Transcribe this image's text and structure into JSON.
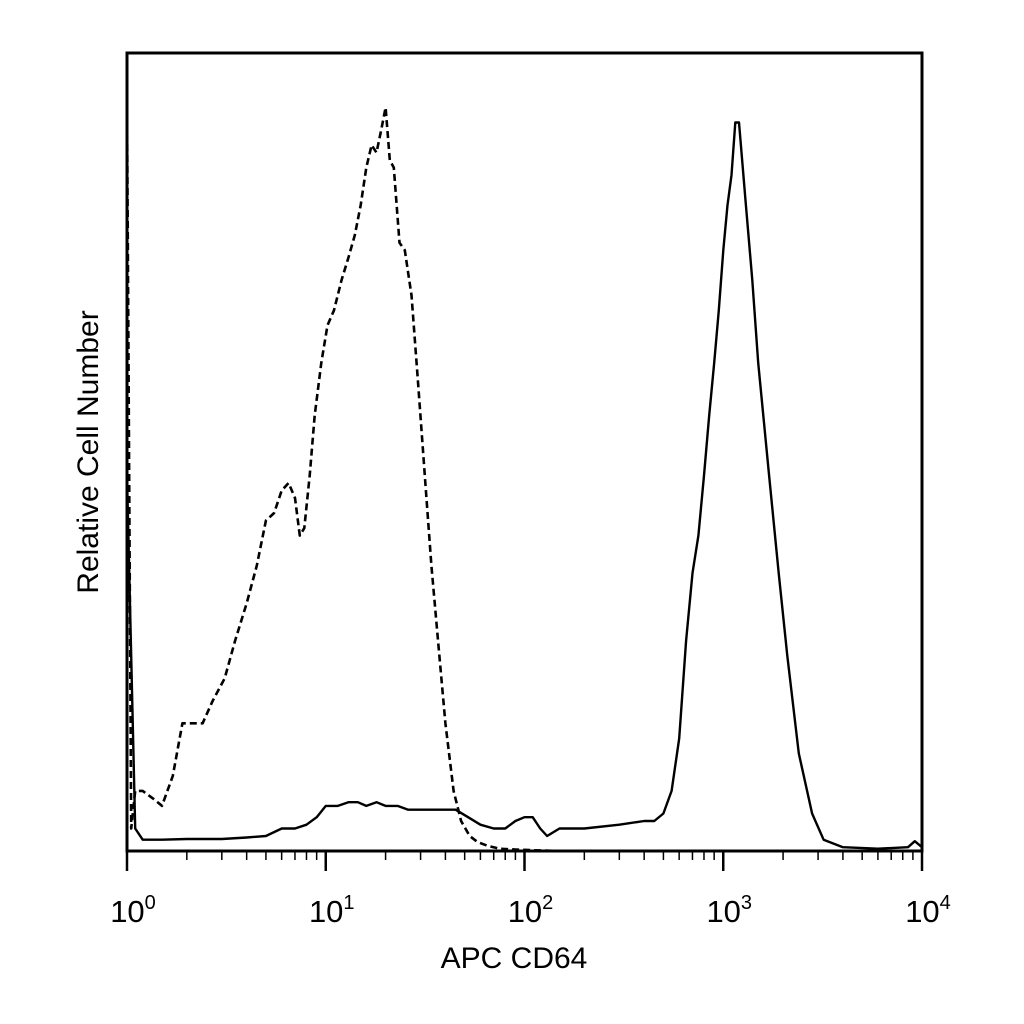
{
  "chart_data": {
    "type": "line",
    "title": "",
    "xlabel": "APC CD64",
    "ylabel": "Relative Cell Number",
    "xscale": "log",
    "xlim": [
      1,
      10000
    ],
    "ylim": [
      0,
      100
    ],
    "grid": false,
    "legend": "none",
    "x_ticks": [
      {
        "value": 1,
        "base": "10",
        "exp": "0"
      },
      {
        "value": 10,
        "base": "10",
        "exp": "1"
      },
      {
        "value": 100,
        "base": "10",
        "exp": "2"
      },
      {
        "value": 1000,
        "base": "10",
        "exp": "3"
      },
      {
        "value": 10000,
        "base": "10",
        "exp": "4"
      }
    ],
    "series": [
      {
        "style": "dashed",
        "color": "#000000",
        "x": [
          1.0,
          1.05,
          1.1,
          1.2,
          1.35,
          1.5,
          1.7,
          1.9,
          2.1,
          2.4,
          2.7,
          3.1,
          3.5,
          4.0,
          4.5,
          5.0,
          5.5,
          6.0,
          6.5,
          7.0,
          7.4,
          7.8,
          8.3,
          8.8,
          9.5,
          10.2,
          11.0,
          12.0,
          13.0,
          14.0,
          15.0,
          16.0,
          17.0,
          18.0,
          19.0,
          20.0,
          21.0,
          22.0,
          23.5,
          25.0,
          27.0,
          29.0,
          31.5,
          34.0,
          37.0,
          40.0,
          44.0,
          48.0,
          53.0,
          58.0,
          65.0,
          75.0,
          90.0,
          110.0,
          150.0,
          200.0,
          400.0,
          1000.0,
          10000.0
        ],
        "y": [
          100,
          3,
          8,
          8,
          7,
          6,
          10,
          17,
          17,
          17,
          20,
          23,
          28,
          33,
          38,
          44,
          45,
          48,
          49,
          47,
          42,
          43,
          50,
          58,
          65,
          70,
          72,
          76,
          79,
          82,
          86,
          91,
          94,
          93,
          96,
          99,
          92,
          91,
          81,
          80,
          74,
          63,
          50,
          38,
          27,
          17,
          8,
          4,
          2,
          1.2,
          0.7,
          0.3,
          0.2,
          0.1,
          0,
          0,
          0,
          0,
          0
        ]
      },
      {
        "style": "solid",
        "color": "#000000",
        "x": [
          1.0,
          1.1,
          1.2,
          1.5,
          2.0,
          3.0,
          4.0,
          5.0,
          6.0,
          7.0,
          8.0,
          9.0,
          10.0,
          11.5,
          13.0,
          14.5,
          16.0,
          18.0,
          20.0,
          23.0,
          26.0,
          30.0,
          35.0,
          40.0,
          45.0,
          52.0,
          60.0,
          70.0,
          80.0,
          90.0,
          100.0,
          110.0,
          120.0,
          130.0,
          150.0,
          200.0,
          300.0,
          400.0,
          450.0,
          500.0,
          550.0,
          600.0,
          650.0,
          700.0,
          750.0,
          800.0,
          850.0,
          900.0,
          950.0,
          1000.0,
          1050.0,
          1100.0,
          1150.0,
          1200.0,
          1300.0,
          1400.0,
          1500.0,
          1700.0,
          1900.0,
          2100.0,
          2400.0,
          2800.0,
          3200.0,
          4000.0,
          6000.0,
          8500.0,
          9200.0,
          10000.0
        ],
        "y": [
          50,
          3,
          1.5,
          1.5,
          1.6,
          1.6,
          1.8,
          2,
          3,
          3,
          3.5,
          4.5,
          6,
          6,
          6.5,
          6.5,
          6,
          6.5,
          6,
          6,
          5.5,
          5.5,
          5.5,
          5.5,
          5.5,
          4.5,
          3.5,
          3,
          3,
          4,
          4.5,
          4.5,
          3,
          2,
          3,
          3,
          3.5,
          4,
          4,
          5,
          8,
          15,
          28,
          37,
          42,
          50,
          58,
          65,
          72,
          80,
          86,
          90,
          97,
          97,
          86,
          76,
          65,
          50,
          37,
          26,
          13,
          5,
          1.5,
          0.5,
          0.3,
          0.5,
          1.3,
          0.5
        ]
      }
    ]
  }
}
